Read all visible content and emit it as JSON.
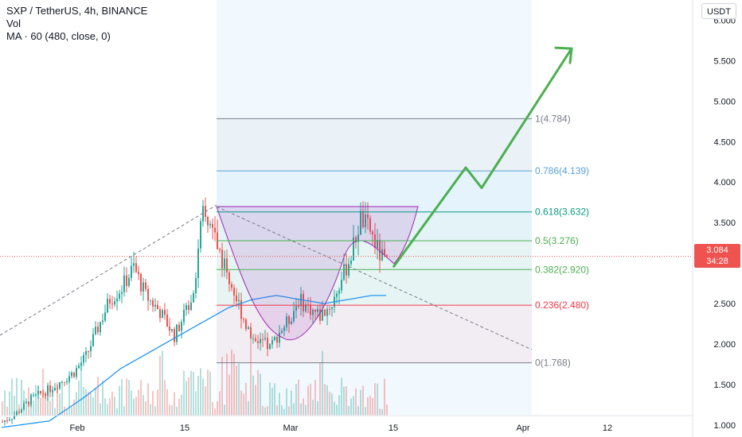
{
  "header": {
    "symbol_line": "SXP / TetherUS, 4h, BINANCE",
    "vol_label": "Vol",
    "ma_label": "MA · 60 (480, close, 0)",
    "currency": "USDT"
  },
  "last_price": {
    "price": "3.084",
    "countdown": "34:28"
  },
  "colors": {
    "up": "#26a69a",
    "down": "#ef5350",
    "ma": "#2196f3",
    "projection": "#4caf50",
    "cup": "#9c27b0",
    "price_line": "#ef5350"
  },
  "y_axis": {
    "min": 0.95,
    "max": 6.25,
    "ticks": [
      "6.000",
      "5.500",
      "5.000",
      "4.500",
      "4.000",
      "3.500",
      "3.000",
      "2.500",
      "2.000",
      "1.500",
      "1.000"
    ]
  },
  "x_axis": {
    "ticks": [
      "Feb",
      "15",
      "Mar",
      "15",
      "Apr",
      "12"
    ]
  },
  "fib_levels": [
    {
      "ratio": "1",
      "value": 4.784,
      "label": "1(4.784)",
      "color": "#787b86"
    },
    {
      "ratio": "0.786",
      "value": 4.139,
      "label": "0.786(4.139)",
      "color": "#5aa0d6"
    },
    {
      "ratio": "0.618",
      "value": 3.632,
      "label": "0.618(3.632)",
      "color": "#089981"
    },
    {
      "ratio": "0.5",
      "value": 3.276,
      "label": "0.5(3.276)",
      "color": "#4caf50"
    },
    {
      "ratio": "0.382",
      "value": 2.92,
      "label": "0.382(2.920)",
      "color": "#4caf50"
    },
    {
      "ratio": "0.236",
      "value": 2.48,
      "label": "0.236(2.480)",
      "color": "#f23645"
    },
    {
      "ratio": "0",
      "value": 1.768,
      "label": "0(1.768)",
      "color": "#787b86"
    }
  ],
  "chart_data": {
    "type": "candlestick",
    "series": [
      {
        "name": "SXP / TetherUS",
        "kind": "candles"
      },
      {
        "name": "Vol",
        "kind": "volume"
      },
      {
        "name": "MA · 60",
        "kind": "line"
      }
    ],
    "candle_seed": 7,
    "price_path": [
      [
        0,
        1.04
      ],
      [
        5,
        1.12
      ],
      [
        12,
        1.32
      ],
      [
        20,
        1.45
      ],
      [
        25,
        1.55
      ],
      [
        30,
        1.65
      ],
      [
        35,
        1.85
      ],
      [
        40,
        2.2
      ],
      [
        45,
        2.55
      ],
      [
        50,
        2.7
      ],
      [
        55,
        2.95
      ],
      [
        60,
        2.6
      ],
      [
        66,
        2.4
      ],
      [
        72,
        2.1
      ],
      [
        76,
        2.35
      ],
      [
        80,
        2.65
      ],
      [
        82,
        3.2
      ],
      [
        84,
        3.6
      ],
      [
        88,
        3.4
      ],
      [
        92,
        3.05
      ],
      [
        95,
        2.8
      ],
      [
        100,
        2.4
      ],
      [
        104,
        2.1
      ],
      [
        108,
        2.05
      ],
      [
        112,
        1.95
      ],
      [
        116,
        2.15
      ],
      [
        120,
        2.3
      ],
      [
        124,
        2.55
      ],
      [
        128,
        2.45
      ],
      [
        133,
        2.35
      ],
      [
        138,
        2.5
      ],
      [
        142,
        2.8
      ],
      [
        146,
        3.1
      ],
      [
        150,
        3.55
      ],
      [
        154,
        3.4
      ],
      [
        158,
        3.1
      ],
      [
        161,
        3.0
      ]
    ],
    "ma_path": [
      [
        0,
        0.97
      ],
      [
        20,
        1.05
      ],
      [
        35,
        1.35
      ],
      [
        50,
        1.7
      ],
      [
        65,
        1.95
      ],
      [
        80,
        2.2
      ],
      [
        95,
        2.45
      ],
      [
        105,
        2.55
      ],
      [
        115,
        2.6
      ],
      [
        125,
        2.55
      ],
      [
        135,
        2.5
      ],
      [
        145,
        2.55
      ],
      [
        155,
        2.6
      ],
      [
        161,
        2.6
      ]
    ],
    "projection_path": [
      [
        "2021-03-15",
        2.95
      ],
      [
        "2021-03-21",
        4.18
      ],
      [
        "2021-03-24",
        3.93
      ],
      [
        "2021-04-05",
        5.65
      ]
    ],
    "bars": 162,
    "last_close": 3.084
  }
}
